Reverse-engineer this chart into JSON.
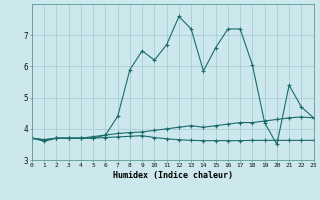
{
  "title": "",
  "xlabel": "Humidex (Indice chaleur)",
  "background_color": "#cde8ec",
  "grid_color": "#a8cdd4",
  "line_color": "#1a6b6b",
  "x_values": [
    0,
    1,
    2,
    3,
    4,
    5,
    6,
    7,
    8,
    9,
    10,
    11,
    12,
    13,
    14,
    15,
    16,
    17,
    18,
    19,
    20,
    21,
    22,
    23
  ],
  "series1": [
    3.7,
    3.6,
    3.7,
    3.7,
    3.7,
    3.7,
    3.8,
    4.4,
    5.9,
    6.5,
    6.2,
    6.7,
    7.6,
    7.2,
    5.85,
    6.6,
    7.2,
    7.2,
    6.05,
    4.2,
    3.5,
    5.4,
    4.7,
    4.35
  ],
  "series2": [
    3.7,
    3.65,
    3.7,
    3.7,
    3.7,
    3.75,
    3.8,
    3.85,
    3.88,
    3.9,
    3.95,
    4.0,
    4.05,
    4.1,
    4.05,
    4.1,
    4.15,
    4.2,
    4.2,
    4.25,
    4.3,
    4.35,
    4.38,
    4.35
  ],
  "series3": [
    3.7,
    3.65,
    3.7,
    3.7,
    3.7,
    3.7,
    3.72,
    3.74,
    3.76,
    3.78,
    3.72,
    3.68,
    3.65,
    3.63,
    3.62,
    3.62,
    3.62,
    3.62,
    3.63,
    3.63,
    3.63,
    3.63,
    3.63,
    3.63
  ],
  "ylim": [
    3.0,
    8.0
  ],
  "xlim": [
    0,
    23
  ],
  "yticks": [
    3,
    4,
    5,
    6,
    7
  ],
  "xticks": [
    0,
    1,
    2,
    3,
    4,
    5,
    6,
    7,
    8,
    9,
    10,
    11,
    12,
    13,
    14,
    15,
    16,
    17,
    18,
    19,
    20,
    21,
    22,
    23
  ]
}
